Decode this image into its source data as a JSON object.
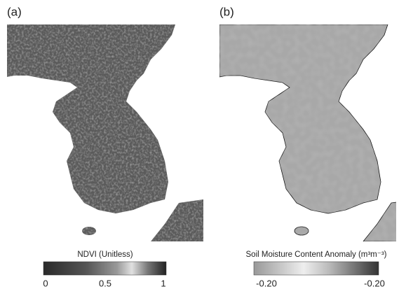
{
  "panels": [
    {
      "label": "(a)",
      "colorbar": {
        "title": "NDVI (Unitless)",
        "ticks": [
          "0",
          "0.5",
          "1"
        ]
      }
    },
    {
      "label": "(b)",
      "colorbar": {
        "title": "Soil Moisture Content Anomaly (m³m⁻³)",
        "ticks": [
          "-0.20",
          "-0.20"
        ]
      }
    }
  ]
}
